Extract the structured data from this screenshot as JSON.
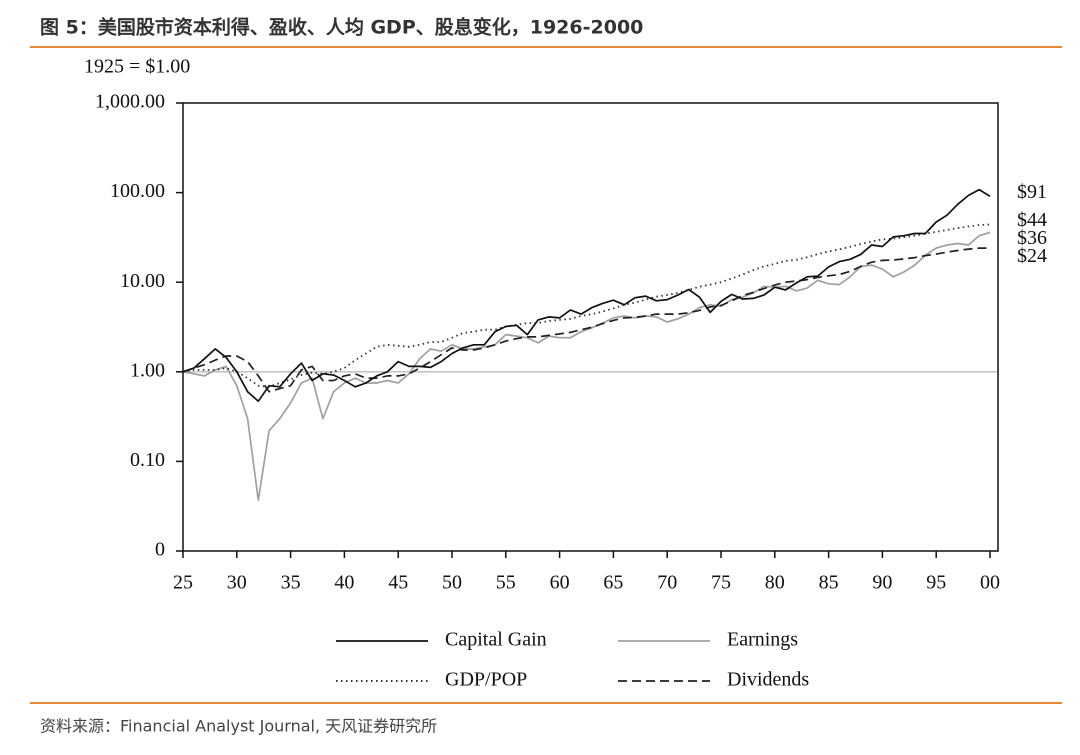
{
  "header": {
    "title": "图 5：美国股市资本利得、盈收、人均 GDP、股息变化，1926-2000"
  },
  "footer": {
    "source": "资料来源：Financial Analyst Journal, 天风证券研究所"
  },
  "chart_data": {
    "type": "line",
    "y_unit_label": "1925 = $1.00",
    "log_scale_y": true,
    "reference_line": 1,
    "x": [
      1925,
      1926,
      1927,
      1928,
      1929,
      1930,
      1931,
      1932,
      1933,
      1934,
      1935,
      1936,
      1937,
      1938,
      1939,
      1940,
      1941,
      1942,
      1943,
      1944,
      1945,
      1946,
      1947,
      1948,
      1949,
      1950,
      1951,
      1952,
      1953,
      1954,
      1955,
      1956,
      1957,
      1958,
      1959,
      1960,
      1961,
      1962,
      1963,
      1964,
      1965,
      1966,
      1967,
      1968,
      1969,
      1970,
      1971,
      1972,
      1973,
      1974,
      1975,
      1976,
      1977,
      1978,
      1979,
      1980,
      1981,
      1982,
      1983,
      1984,
      1985,
      1986,
      1987,
      1988,
      1989,
      1990,
      1991,
      1992,
      1993,
      1994,
      1995,
      1996,
      1997,
      1998,
      1999,
      2000
    ],
    "xlim": [
      1925,
      2000
    ],
    "xticks": [
      {
        "value": 1925,
        "label": "25"
      },
      {
        "value": 1930,
        "label": "30"
      },
      {
        "value": 1935,
        "label": "35"
      },
      {
        "value": 1940,
        "label": "40"
      },
      {
        "value": 1945,
        "label": "45"
      },
      {
        "value": 1950,
        "label": "50"
      },
      {
        "value": 1955,
        "label": "55"
      },
      {
        "value": 1960,
        "label": "60"
      },
      {
        "value": 1965,
        "label": "65"
      },
      {
        "value": 1970,
        "label": "70"
      },
      {
        "value": 1975,
        "label": "75"
      },
      {
        "value": 1980,
        "label": "80"
      },
      {
        "value": 1985,
        "label": "85"
      },
      {
        "value": 1990,
        "label": "90"
      },
      {
        "value": 1995,
        "label": "95"
      },
      {
        "value": 2000,
        "label": "00"
      }
    ],
    "ylim": [
      0.01,
      1000
    ],
    "yticks": [
      {
        "value": 1000,
        "label": "1,000.00"
      },
      {
        "value": 100,
        "label": "100.00"
      },
      {
        "value": 10,
        "label": "10.00"
      },
      {
        "value": 1,
        "label": "1.00"
      },
      {
        "value": 0.1,
        "label": "0.10"
      },
      {
        "value": 0.01,
        "label": "0"
      }
    ],
    "series": [
      {
        "name": "Capital Gain",
        "color": "#111111",
        "dash": "solid",
        "end_label": "$91",
        "values": [
          1.0,
          1.1,
          1.4,
          1.8,
          1.45,
          1.0,
          0.6,
          0.47,
          0.7,
          0.68,
          0.95,
          1.25,
          0.8,
          0.95,
          0.92,
          0.8,
          0.68,
          0.75,
          0.9,
          1.0,
          1.3,
          1.15,
          1.15,
          1.12,
          1.3,
          1.6,
          1.85,
          2.0,
          2.0,
          2.8,
          3.2,
          3.3,
          2.6,
          3.8,
          4.1,
          4.0,
          4.9,
          4.4,
          5.2,
          5.8,
          6.3,
          5.6,
          6.7,
          7.0,
          6.2,
          6.4,
          7.2,
          8.3,
          6.8,
          4.6,
          6.1,
          7.3,
          6.5,
          6.6,
          7.2,
          8.8,
          8.2,
          9.8,
          11.5,
          11.7,
          14.8,
          17.0,
          18.0,
          20.5,
          26,
          25,
          32,
          33,
          35,
          35,
          47,
          56,
          74,
          93,
          108,
          91
        ]
      },
      {
        "name": "Earnings",
        "color": "#a0a0a0",
        "dash": "solid",
        "end_label": "$36",
        "values": [
          1.0,
          0.95,
          0.9,
          1.05,
          1.15,
          0.7,
          0.3,
          0.037,
          0.22,
          0.3,
          0.45,
          0.75,
          0.85,
          0.3,
          0.6,
          0.75,
          0.85,
          0.75,
          0.75,
          0.8,
          0.75,
          0.95,
          1.4,
          1.8,
          1.7,
          2.0,
          1.8,
          1.8,
          1.9,
          2.0,
          2.6,
          2.5,
          2.4,
          2.1,
          2.5,
          2.4,
          2.4,
          2.8,
          3.1,
          3.5,
          4.0,
          4.2,
          4.0,
          4.2,
          4.1,
          3.6,
          3.9,
          4.4,
          5.2,
          5.6,
          5.4,
          6.4,
          6.8,
          7.6,
          9.0,
          8.8,
          9.0,
          8.0,
          8.6,
          10.5,
          9.6,
          9.4,
          11.5,
          15.0,
          15.5,
          14.0,
          11.5,
          13.0,
          15.5,
          20,
          24,
          26,
          27,
          26,
          33,
          36
        ]
      },
      {
        "name": "GDP/POP",
        "color": "#333333",
        "dash": "dotted",
        "end_label": "$44",
        "values": [
          1.0,
          1.05,
          1.05,
          1.05,
          1.1,
          1.0,
          0.85,
          0.7,
          0.68,
          0.75,
          0.82,
          0.92,
          0.98,
          0.95,
          1.0,
          1.1,
          1.35,
          1.6,
          1.9,
          2.0,
          1.95,
          1.9,
          2.0,
          2.15,
          2.15,
          2.4,
          2.7,
          2.8,
          2.95,
          2.95,
          3.2,
          3.35,
          3.5,
          3.5,
          3.7,
          3.8,
          3.9,
          4.2,
          4.4,
          4.7,
          5.1,
          5.6,
          5.9,
          6.4,
          6.9,
          7.2,
          7.6,
          8.2,
          8.9,
          9.4,
          10.0,
          11.0,
          12.2,
          13.6,
          15.0,
          16.0,
          17.3,
          17.8,
          19.0,
          20.6,
          22.0,
          23.3,
          24.8,
          26.6,
          28.5,
          30.0,
          30.6,
          31.8,
          33.0,
          34.8,
          36.5,
          38.3,
          40.2,
          41.8,
          43.5,
          44
        ]
      },
      {
        "name": "Dividends",
        "color": "#222222",
        "dash": "dashed",
        "end_label": "$24",
        "values": [
          1.0,
          1.1,
          1.2,
          1.35,
          1.5,
          1.5,
          1.3,
          0.9,
          0.6,
          0.65,
          0.7,
          1.05,
          1.15,
          0.8,
          0.8,
          0.9,
          0.95,
          0.85,
          0.85,
          0.9,
          0.9,
          0.95,
          1.1,
          1.3,
          1.55,
          1.85,
          1.75,
          1.75,
          1.85,
          2.0,
          2.2,
          2.35,
          2.45,
          2.45,
          2.55,
          2.65,
          2.75,
          2.95,
          3.15,
          3.45,
          3.75,
          4.0,
          4.05,
          4.2,
          4.4,
          4.4,
          4.4,
          4.55,
          4.85,
          5.3,
          5.5,
          6.2,
          7.1,
          7.7,
          8.5,
          9.3,
          10.0,
          10.3,
          10.7,
          11.3,
          11.8,
          12.2,
          13.2,
          15.0,
          16.7,
          17.5,
          17.7,
          18.2,
          18.8,
          19.8,
          20.6,
          21.7,
          22.6,
          23.4,
          24.0,
          24
        ]
      }
    ]
  }
}
